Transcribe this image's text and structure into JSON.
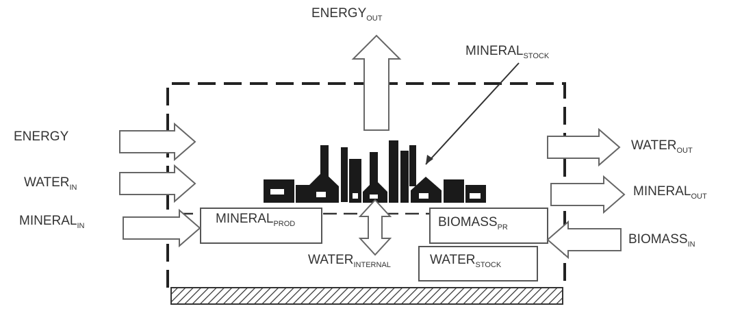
{
  "labels": [
    {
      "main": "ENERGY",
      "sub": "OUT"
    },
    {
      "main": "MINERAL",
      "sub": "STOCK"
    },
    {
      "main": "ENERGY"
    },
    {
      "main": "WATER",
      "sub": "IN"
    },
    {
      "main": "MINERAL",
      "sub": "IN"
    },
    {
      "main": "WATER",
      "sub": "OUT"
    },
    {
      "main": "MINERAL",
      "sub": "OUT"
    },
    {
      "main": "BIOMASS",
      "sub": "IN"
    },
    {
      "main": "MINERAL",
      "sub": "PROD"
    },
    {
      "main": "BIOMASS",
      "sub": "PR"
    },
    {
      "main": "WATER",
      "sub": "INTERNAL"
    },
    {
      "main": "WATER",
      "sub": "STOCK"
    }
  ]
}
